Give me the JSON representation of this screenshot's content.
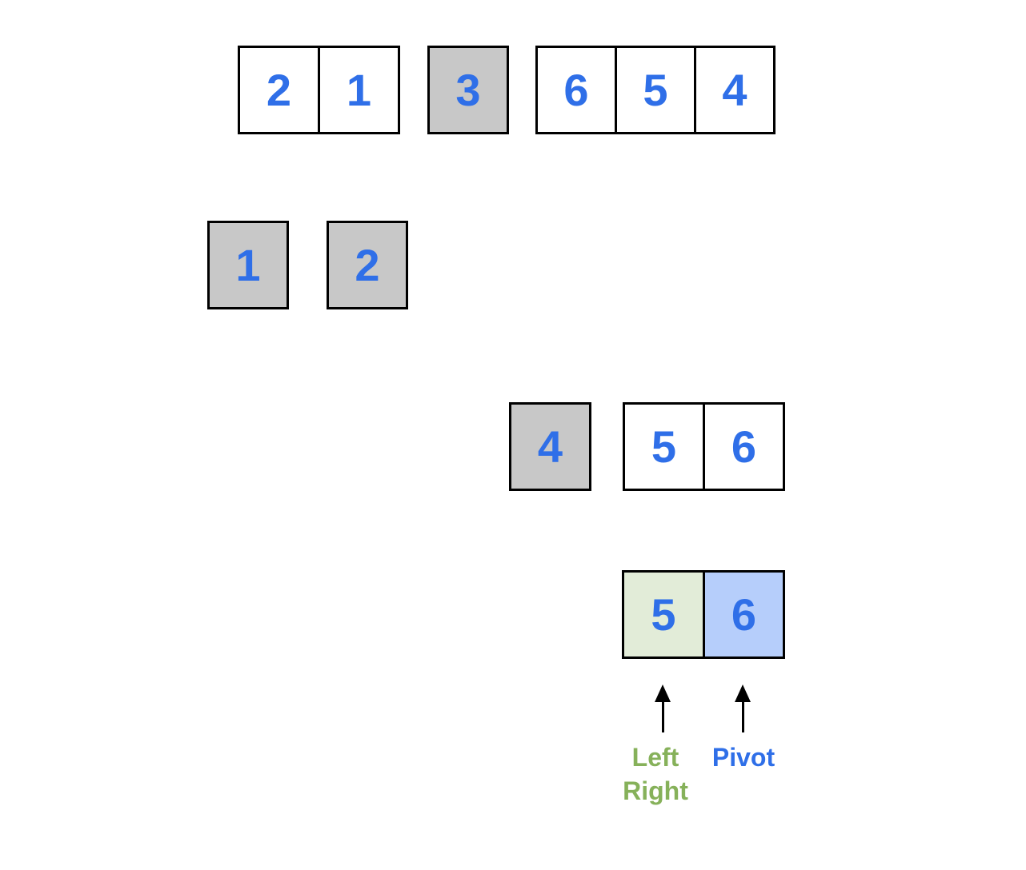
{
  "rows": [
    {
      "name": "row-level-0",
      "groups": [
        {
          "kind": "unsorted",
          "values": [
            "2",
            "1"
          ]
        },
        {
          "kind": "sorted",
          "values": [
            "3"
          ]
        },
        {
          "kind": "unsorted",
          "values": [
            "6",
            "5",
            "4"
          ]
        }
      ]
    },
    {
      "name": "row-level-1",
      "groups": [
        {
          "kind": "sorted",
          "values": [
            "1"
          ]
        },
        {
          "kind": "sorted",
          "values": [
            "2"
          ]
        }
      ]
    },
    {
      "name": "row-level-2",
      "groups": [
        {
          "kind": "sorted",
          "values": [
            "4"
          ]
        },
        {
          "kind": "unsorted",
          "values": [
            "5",
            "6"
          ]
        }
      ]
    },
    {
      "name": "row-level-3",
      "groups": [
        {
          "kind": "pointers",
          "values": [
            "5",
            "6"
          ]
        }
      ]
    }
  ],
  "pointers": {
    "left_right": {
      "lines": [
        "Left",
        "Right"
      ],
      "color": "#86b15a"
    },
    "pivot": {
      "lines": [
        "Pivot"
      ],
      "color": "#2f6fe8"
    }
  },
  "colors": {
    "digit": "#2f6fe8",
    "sorted_fill": "#c8c8c8",
    "left_fill": "#e2ecd8",
    "pivot_fill": "#b6cefb",
    "border": "#000000"
  }
}
